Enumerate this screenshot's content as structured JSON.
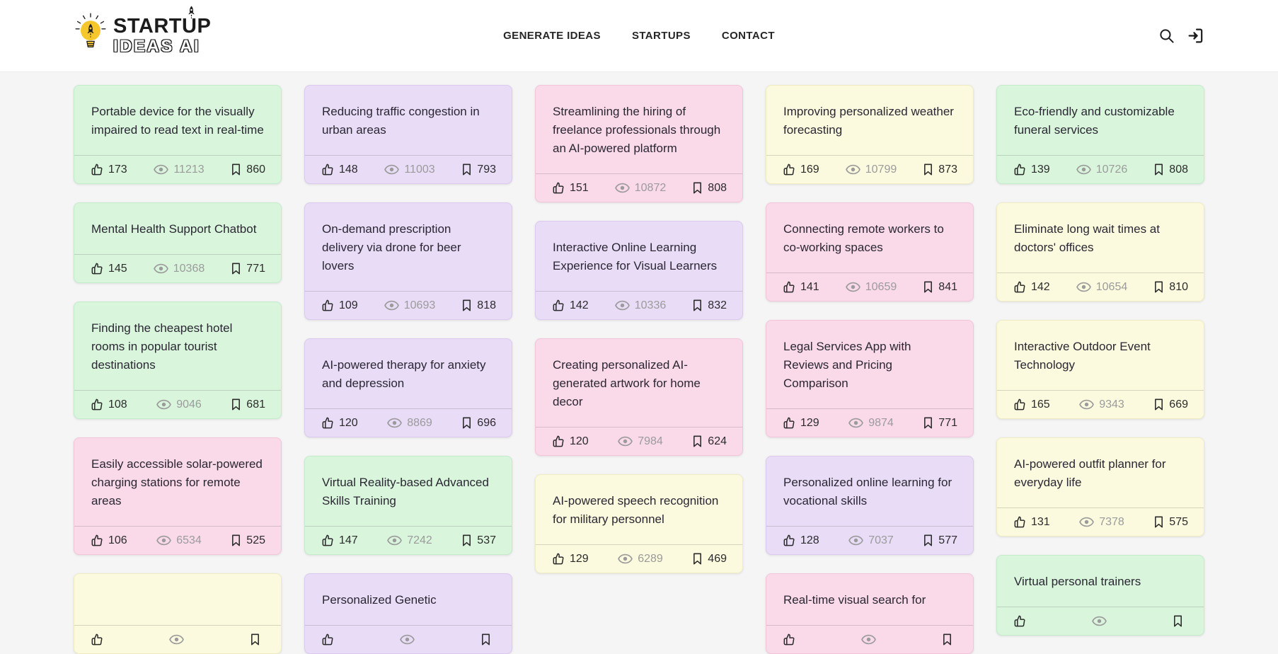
{
  "brand": {
    "line1": "STARTUP",
    "line2": "IDEAS AI",
    "accent_color": "#f6c62d",
    "logo_icon": "lightbulb-rocket-icon"
  },
  "nav": {
    "items": [
      {
        "label": "GENERATE IDEAS"
      },
      {
        "label": "STARTUPS"
      },
      {
        "label": "CONTACT"
      }
    ]
  },
  "header_actions": {
    "icons": [
      "search-icon",
      "login-icon"
    ]
  },
  "palette": {
    "page_bg": "#f5f5f6",
    "header_bg": "#ffffff",
    "card_green": "#d9f6dd",
    "card_purple": "#e9dcf7",
    "card_pink": "#fad9e9",
    "card_yellow": "#fbfade"
  },
  "stats_legend": {
    "likes": "thumbs-up-icon",
    "views": "eye-icon",
    "bookmarks": "bookmark-icon"
  },
  "columns": [
    {
      "cards": [
        {
          "title": "Portable device for the visually impaired to read text in real-time",
          "color": "green",
          "likes": "173",
          "views": "11213",
          "bookmarks": "860"
        },
        {
          "title": "Mental Health Support Chatbot",
          "color": "green",
          "likes": "145",
          "views": "10368",
          "bookmarks": "771"
        },
        {
          "title": "Finding the cheapest hotel rooms in popular tourist destinations",
          "color": "green",
          "likes": "108",
          "views": "9046",
          "bookmarks": "681"
        },
        {
          "title": "Easily accessible solar-powered charging stations for remote areas",
          "color": "pink",
          "likes": "106",
          "views": "6534",
          "bookmarks": "525"
        },
        {
          "title": "",
          "color": "yellow",
          "partial": true
        }
      ]
    },
    {
      "cards": [
        {
          "title": "Reducing traffic congestion in urban areas",
          "color": "purple",
          "likes": "148",
          "views": "11003",
          "bookmarks": "793"
        },
        {
          "title": "On-demand prescription delivery via drone for beer lovers",
          "color": "purple",
          "likes": "109",
          "views": "10693",
          "bookmarks": "818"
        },
        {
          "title": "AI-powered therapy for anxiety and depression",
          "color": "purple",
          "likes": "120",
          "views": "8869",
          "bookmarks": "696"
        },
        {
          "title": "Virtual Reality-based Advanced Skills Training",
          "color": "green",
          "likes": "147",
          "views": "7242",
          "bookmarks": "537"
        },
        {
          "title": "Personalized Genetic",
          "color": "purple",
          "partial": true
        }
      ]
    },
    {
      "cards": [
        {
          "title": "Streamlining the hiring of freelance professionals through an AI-powered platform",
          "color": "pink",
          "likes": "151",
          "views": "10872",
          "bookmarks": "808"
        },
        {
          "title": "Interactive Online Learning Experience for Visual Learners",
          "color": "purple",
          "likes": "142",
          "views": "10336",
          "bookmarks": "832"
        },
        {
          "title": "Creating personalized AI-generated artwork for home decor",
          "color": "pink",
          "likes": "120",
          "views": "7984",
          "bookmarks": "624"
        },
        {
          "title": "AI-powered speech recognition for military personnel",
          "color": "yellow",
          "likes": "129",
          "views": "6289",
          "bookmarks": "469"
        }
      ]
    },
    {
      "cards": [
        {
          "title": "Improving personalized weather forecasting",
          "color": "yellow",
          "likes": "169",
          "views": "10799",
          "bookmarks": "873"
        },
        {
          "title": "Connecting remote workers to co-working spaces",
          "color": "pink",
          "likes": "141",
          "views": "10659",
          "bookmarks": "841"
        },
        {
          "title": "Legal Services App with Reviews and Pricing Comparison",
          "color": "pink",
          "likes": "129",
          "views": "9874",
          "bookmarks": "771"
        },
        {
          "title": "Personalized online learning for vocational skills",
          "color": "purple",
          "likes": "128",
          "views": "7037",
          "bookmarks": "577"
        },
        {
          "title": "Real-time visual search for",
          "color": "pink",
          "partial": true
        }
      ]
    },
    {
      "cards": [
        {
          "title": "Eco-friendly and customizable funeral services",
          "color": "green",
          "likes": "139",
          "views": "10726",
          "bookmarks": "808"
        },
        {
          "title": "Eliminate long wait times at doctors' offices",
          "color": "yellow",
          "likes": "142",
          "views": "10654",
          "bookmarks": "810"
        },
        {
          "title": "Interactive Outdoor Event Technology",
          "color": "yellow",
          "likes": "165",
          "views": "9343",
          "bookmarks": "669"
        },
        {
          "title": "AI-powered outfit planner for everyday life",
          "color": "yellow",
          "likes": "131",
          "views": "7378",
          "bookmarks": "575"
        },
        {
          "title": "Virtual personal trainers",
          "color": "green",
          "partial": true
        }
      ]
    }
  ]
}
